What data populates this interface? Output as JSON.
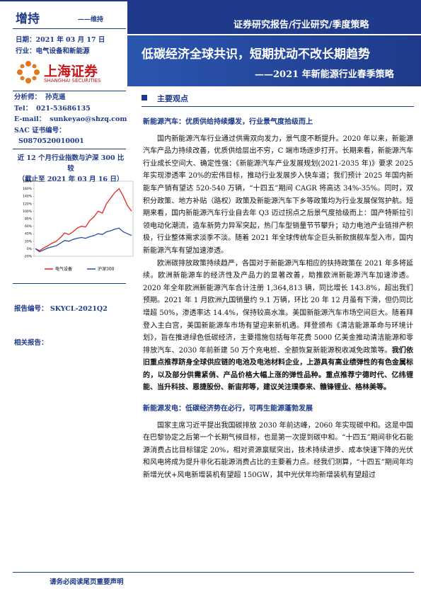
{
  "header": {
    "rating": "增持",
    "rating_prev": "——维持",
    "banner": "证券研究报告/行业研究/季度策略",
    "title": "低碳经济全球共识，短期扰动不改长期趋势",
    "subtitle": "——2021 年新能源行业春季策略"
  },
  "meta": {
    "date": "日期：2021 年 03 月 17 日",
    "industry": "行业：电气设备和新能源",
    "logo_cn": "上海证券",
    "logo_en": "SHANGHAI SECURITIES"
  },
  "analyst": [
    [
      "分析师：",
      "孙克遥"
    ],
    [
      "Tel：",
      "021-53686135"
    ],
    [
      "E-mail：",
      "sunkeyao@shzq.com"
    ],
    [
      "SAC 证书编号：",
      "S0870520010001"
    ]
  ],
  "chart_title": [
    "近 12 个月行业指数与沪深 300 比较",
    "（截止至 2021 年 03 月 16 日）"
  ],
  "chart_data": {
    "type": "line",
    "ylim": [
      -20,
      180
    ],
    "yticks": [
      {
        "value": -20,
        "label": "-20%"
      },
      {
        "value": 0,
        "label": "0%"
      },
      {
        "value": 20,
        "label": "20%"
      },
      {
        "value": 40,
        "label": "40%"
      },
      {
        "value": 60,
        "label": "60%"
      },
      {
        "value": 80,
        "label": "80%"
      },
      {
        "value": 100,
        "label": "100%"
      },
      {
        "value": 120,
        "label": "120%"
      },
      {
        "value": 140,
        "label": "140%"
      },
      {
        "value": 160,
        "label": "160%"
      },
      {
        "value": 180,
        "label": "180%"
      }
    ],
    "series": [
      {
        "name": "电气设备",
        "color": "#e8231f",
        "values": [
          0,
          -5,
          2,
          8,
          15,
          20,
          30,
          42,
          38,
          45,
          55,
          60,
          58,
          75,
          85,
          100,
          95,
          120,
          135,
          150,
          160,
          140,
          115,
          100
        ]
      },
      {
        "name": "沪深300",
        "color": "#1f4fa0",
        "values": [
          0,
          -8,
          -3,
          2,
          5,
          8,
          15,
          22,
          20,
          25,
          28,
          30,
          28,
          32,
          35,
          40,
          38,
          45,
          48,
          52,
          55,
          45,
          40,
          35
        ]
      }
    ]
  },
  "report_no": [
    "报告编号：",
    "SKYCL-2021Q2"
  ],
  "related": "相关报告：",
  "main_points": "主要观点",
  "sections": [
    {
      "heading": "新能源汽车：优质供给持续爆发，行业景气度拾级而上",
      "paragraphs": [
        "国内新能源汽车行业通过供需双向发力，景气度不断提升。2020 年以来，新能源汽车产品力持续改善，优质供给层出不穷，C 端市场逐步打开。长期来看，新能源汽车行业成长空间大、确定性强：《新能源汽车产业发展规划(2021-2035 年)》要求 2025 年实现渗透率 20%的宏伟目标，推动行业发展步入快车道；我们预计 2025 年国内新能车产销有望达 520-540 万辆，“十四五”期间 CAGR 将高达 34%-35%。同时，双积分政策、地方补贴（路权）政策及新能源汽车下乡等政策均为行业发展保驾护航。短期来看，国内新能源汽车行业自去年 Q3 迈过拐点之后景气度拾级而上：国产特斯拉引领电动化潮流，造车新势力异军突起，热门车型销量节节攀升；动力电池产业链排产积极，行业整体需求淡季不淡。随着 2021 年全球传统车企巨头新款旗舰车型入市，国内新能源汽车有望加速渗透。",
        "欧洲碳排放政策持续趋严，各国对于新能源汽车相应的扶持政策在 2021 年多将延续。欧洲新能源车的经济性及产品力的显著改善，助推欧洲新能源汽车加速渗透。2020 年全年欧洲新能源汽车合计注册 1,364,813 辆，同比增长 143.8%，超出我们预期。2021 年 1 月欧洲九国销量约 9.1 万辆，环比 20 年 12 月虽有下滑，但仍同比增超 50%，渗透率达 14.4%，保持较高水准。美国新能源汽车市场空间巨大。随着拜登入主白宫，美国新能源车市场有望迎来新机遇。拜登颁布《清洁能源革命与环境计划》，旨在推进绿色低碳经济，主要措施包括每年花费 5000 亿美金推动清洁能源和零排放汽车、2030 年前新建 50 万个充电桩、全额恢复新能源税收减免政策等。"
      ],
      "emphasis": "我们依旧重点推荐跻身全球供应链的电池及电池材料企业，上游具有高业绩弹性的有色金属标的，以及部分供需紧俏、产品价格大幅上涨的弹性品种。重点推荐宁德时代、亿纬锂能、当升科技、恩捷股份、新宙邦等，建议关注璞泰来、赣锋锂业、格林美等。"
    },
    {
      "heading": "新能源发电：低碳经济势在必行，可再生能源蓬勃发展",
      "paragraphs": [
        "国家主席习近平提出我国碳排放 2030 年前达峰，2060 年实现碳中和。这是中国在巴黎协定之后第一个长期气候目标，也是第一次提到碳中和。“十四五”期间非化石能源消费占比目标锚定 20%，相对资源禀赋突出，技术持续进步、成本快速下降的光伏和风电将成为提升非化石能源消费占比的主要着力点。经我们测算，“十四五”期间年均新增光伏+风电新增装机有望超 150GW，其中光伏年均新增装机有望超过"
      ]
    }
  ],
  "footer": "请务必阅读尾页重要声明"
}
